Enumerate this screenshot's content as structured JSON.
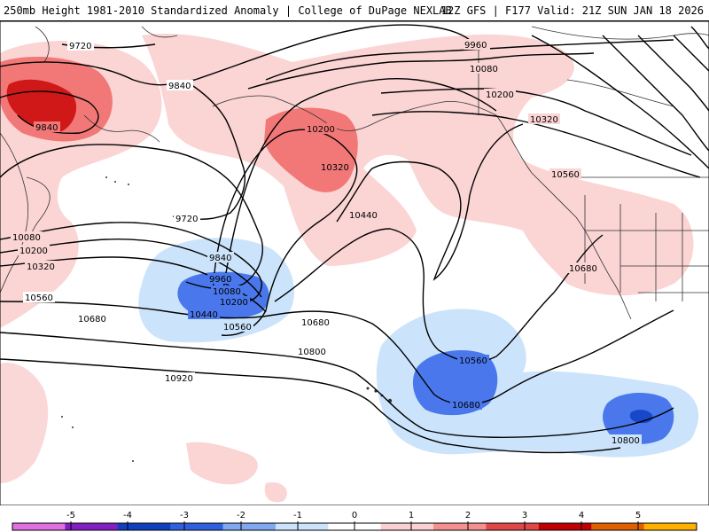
{
  "header": {
    "title_left": "250mb Height 1981-2010 Standardized Anomaly | College of DuPage NEXLAB",
    "title_right": "12Z GFS | F177 Valid: 21Z SUN JAN 18 2026"
  },
  "contour_labels": [
    {
      "text": "9720",
      "id": "c9720-a"
    },
    {
      "text": "9840",
      "id": "c9840-a"
    },
    {
      "text": "9840",
      "id": "c9840-b"
    },
    {
      "text": "9960",
      "id": "c9960-a"
    },
    {
      "text": "10080",
      "id": "c10080-a"
    },
    {
      "text": "10200",
      "id": "c10200-a"
    },
    {
      "text": "10200",
      "id": "c10200-b"
    },
    {
      "text": "10320",
      "id": "c10320-a"
    },
    {
      "text": "10320",
      "id": "c10320-b"
    },
    {
      "text": "10560",
      "id": "c10560-a"
    },
    {
      "text": "9720",
      "id": "c9720-b"
    },
    {
      "text": "10440",
      "id": "c10440-a"
    },
    {
      "text": "10080",
      "id": "c10080-b"
    },
    {
      "text": "10200",
      "id": "c10200-c"
    },
    {
      "text": "10320",
      "id": "c10320-c"
    },
    {
      "text": "9840",
      "id": "c9840-c"
    },
    {
      "text": "9960",
      "id": "c9960-b"
    },
    {
      "text": "10080",
      "id": "c10080-c"
    },
    {
      "text": "10200",
      "id": "c10200-d"
    },
    {
      "text": "10440",
      "id": "c10440-b"
    },
    {
      "text": "10560",
      "id": "c10560-b"
    },
    {
      "text": "10560",
      "id": "c10560-c"
    },
    {
      "text": "10680",
      "id": "c10680-a"
    },
    {
      "text": "10680",
      "id": "c10680-b"
    },
    {
      "text": "10680",
      "id": "c10680-c"
    },
    {
      "text": "10800",
      "id": "c10800-a"
    },
    {
      "text": "10560",
      "id": "c10560-d"
    },
    {
      "text": "10680",
      "id": "c10680-d"
    },
    {
      "text": "10920",
      "id": "c10920-a"
    },
    {
      "text": "10800",
      "id": "c10800-b"
    }
  ],
  "colorbar": {
    "ticks": [
      "-5",
      "-4",
      "-3",
      "-2",
      "-1",
      "0",
      "1",
      "2",
      "3",
      "4",
      "5"
    ],
    "colors": [
      "#e070e0",
      "#8020c0",
      "#1040c0",
      "#3060e0",
      "#80a8f0",
      "#cce4fb",
      "#ffffff",
      "#fbd0d0",
      "#f49090",
      "#e04848",
      "#c00000",
      "#e06000",
      "#ffb000"
    ]
  },
  "colors": {
    "anom_pos_1": "#fbd4d4",
    "anom_pos_2": "#f27878",
    "anom_pos_3": "#d01818",
    "anom_neg_1": "#cce4fb",
    "anom_neg_2": "#4a78ec",
    "anom_neg_3": "#1848c8"
  }
}
